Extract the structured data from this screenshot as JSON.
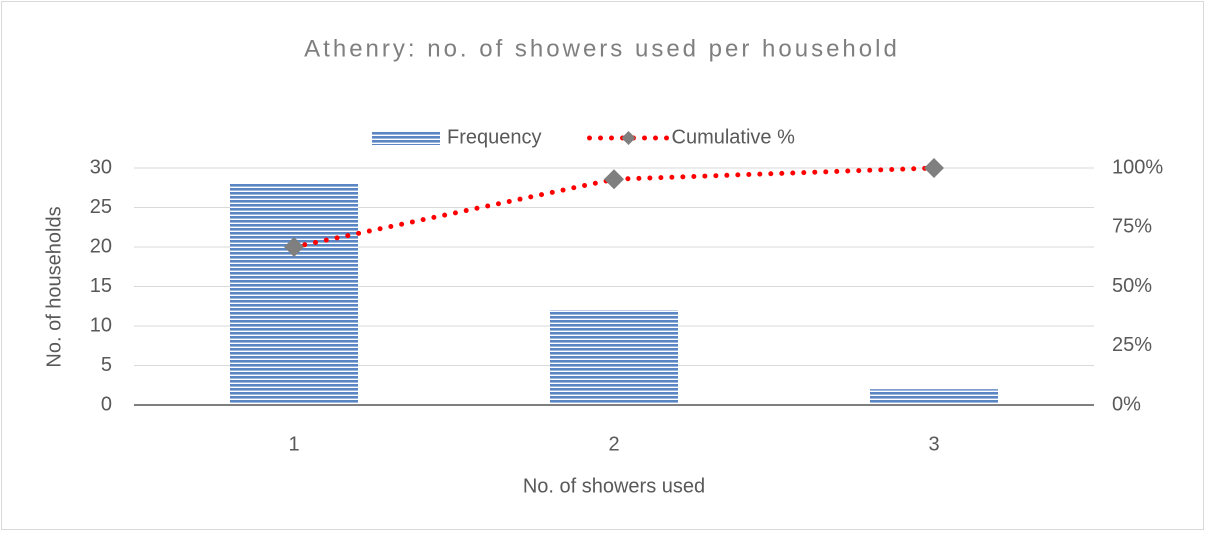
{
  "chart_data": {
    "type": "bar",
    "title": "Athenry: no. of showers used per household",
    "x_label": "No. of showers used",
    "y_label": "No. of households",
    "categories": [
      "1",
      "2",
      "3"
    ],
    "series": [
      {
        "name": "Frequency",
        "type": "bar",
        "color": "#4f81bd",
        "values": [
          28,
          12,
          2
        ]
      },
      {
        "name": "Cumulative %",
        "type": "line",
        "axis": "y2",
        "color": "#ff0000",
        "marker_color": "#7f7f7f",
        "values": [
          66.67,
          95.24,
          100
        ]
      }
    ],
    "ylim": [
      0,
      30
    ],
    "yticks": [
      0,
      5,
      10,
      15,
      20,
      25,
      30
    ],
    "y2lim": [
      0,
      100
    ],
    "y2ticks": [
      {
        "value": 0,
        "label": "0%"
      },
      {
        "value": 25,
        "label": "25%"
      },
      {
        "value": 50,
        "label": "50%"
      },
      {
        "value": 75,
        "label": "75%"
      },
      {
        "value": 100,
        "label": "100%"
      }
    ],
    "grid": true,
    "legend": "top"
  }
}
